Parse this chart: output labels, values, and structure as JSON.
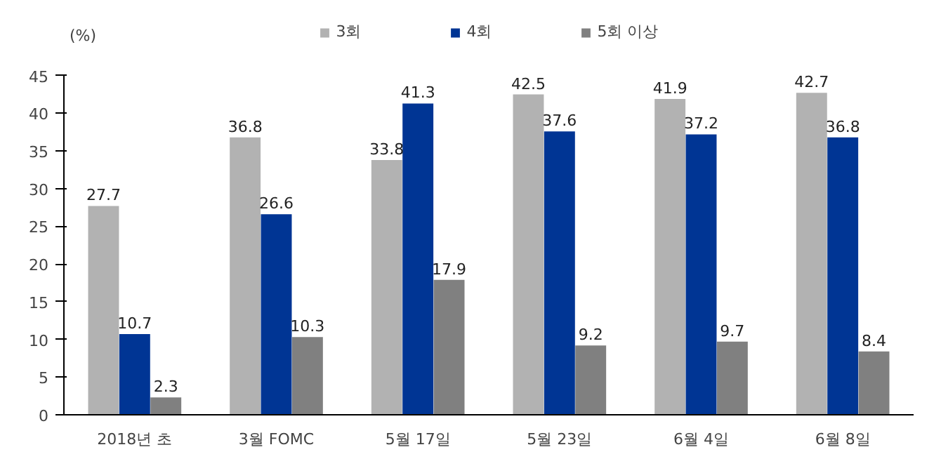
{
  "chart_data": {
    "type": "bar",
    "ylabel": "(%)",
    "categories": [
      "2018년 초",
      "3월 FOMC",
      "5월 17일",
      "5월 23일",
      "6월 4일",
      "6월 8일"
    ],
    "series": [
      {
        "name": "3회",
        "color": "#b2b2b2",
        "values": [
          27.7,
          36.8,
          33.8,
          42.5,
          41.9,
          42.7
        ]
      },
      {
        "name": "4회",
        "color": "#003594",
        "values": [
          10.7,
          26.6,
          41.3,
          37.6,
          37.2,
          36.8
        ]
      },
      {
        "name": "5회 이상",
        "color": "#808080",
        "values": [
          2.3,
          10.3,
          17.9,
          9.2,
          9.7,
          8.4
        ]
      }
    ],
    "ylim": [
      0,
      45
    ],
    "yticks": [
      0,
      5,
      10,
      15,
      20,
      25,
      30,
      35,
      40,
      45
    ],
    "grid": false,
    "legend": "top",
    "data_labels": true
  }
}
